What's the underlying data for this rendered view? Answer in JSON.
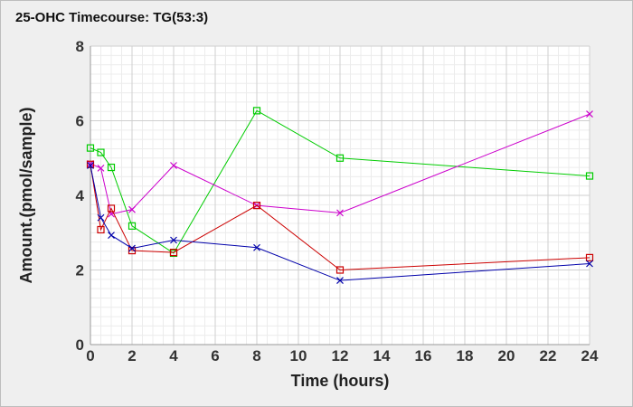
{
  "chart_data": {
    "type": "line",
    "title": "25-OHC Timecourse: TG(53:3)",
    "xlabel": "Time (hours)",
    "ylabel": "Amount.(pmol/sample)",
    "xlim": [
      0,
      24
    ],
    "ylim": [
      0,
      8
    ],
    "xticks": [
      0,
      2,
      4,
      6,
      8,
      10,
      12,
      14,
      16,
      18,
      20,
      22,
      24
    ],
    "yticks": [
      0,
      2,
      4,
      6,
      8
    ],
    "grid": true,
    "series": [
      {
        "color": "#00cc00",
        "marker": "square",
        "x": [
          0,
          0.5,
          1,
          2,
          4,
          8,
          12,
          24
        ],
        "y": [
          5.27,
          5.15,
          4.75,
          3.18,
          2.45,
          6.27,
          5.0,
          4.52
        ]
      },
      {
        "color": "#cc00cc",
        "marker": "x",
        "x": [
          0,
          0.5,
          1,
          2,
          4,
          8,
          12,
          24
        ],
        "y": [
          4.85,
          4.73,
          3.5,
          3.62,
          4.8,
          3.73,
          3.53,
          6.18
        ]
      },
      {
        "color": "#cc0000",
        "marker": "square",
        "x": [
          0,
          0.5,
          1,
          2,
          4,
          8,
          12,
          24
        ],
        "y": [
          4.83,
          3.08,
          3.65,
          2.52,
          2.47,
          3.73,
          2.0,
          2.33
        ]
      },
      {
        "color": "#0000aa",
        "marker": "x",
        "x": [
          0,
          0.5,
          1,
          2,
          4,
          8,
          12,
          24
        ],
        "y": [
          4.8,
          3.4,
          2.93,
          2.58,
          2.8,
          2.6,
          1.72,
          2.17
        ]
      }
    ]
  }
}
